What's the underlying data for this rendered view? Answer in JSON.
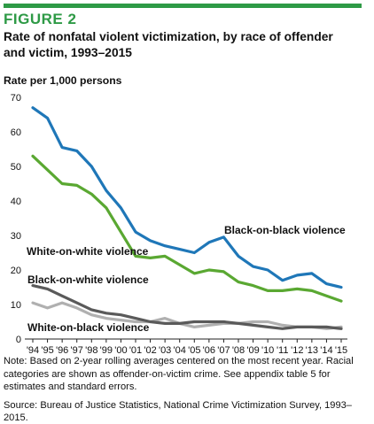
{
  "figure_label": "FIGURE 2",
  "title": "Rate of nonfatal violent victimization, by race of offender and victim, 1993–2015",
  "colors": {
    "accent": "#2e9a46",
    "blue": "#1f77b8",
    "green": "#5aa832",
    "dark_gray": "#5a5a5a",
    "light_gray": "#b0b0b0"
  },
  "note": "Note: Based on 2-year rolling averages centered on the most recent year. Racial categories are shown as offender-on-victim crime. See appendix table 5 for estimates and standard errors.",
  "source": "Source: Bureau of Justice Statistics, National Crime Victimization Survey, 1993–2015.",
  "chart_data": {
    "type": "line",
    "title": "Rate of nonfatal violent victimization, by race of offender and victim, 1993–2015",
    "ylabel": "Rate per 1,000 persons",
    "xlabel": "",
    "ylim": [
      0,
      70
    ],
    "yticks": [
      0,
      10,
      20,
      30,
      40,
      50,
      60,
      70
    ],
    "grid": false,
    "legend": "inline labels",
    "x": [
      "'94",
      "'95",
      "'96",
      "'97",
      "'98",
      "'99",
      "'00",
      "'01",
      "'02",
      "'03",
      "'04",
      "'05",
      "'06",
      "'07",
      "'08",
      "'09",
      "'10",
      "'11",
      "'12",
      "'13",
      "'14",
      "'15"
    ],
    "series": [
      {
        "name": "Black-on-black violence",
        "color": "#1f77b8",
        "values": [
          67,
          64,
          55.5,
          54.5,
          50,
          43,
          38,
          31,
          28.5,
          27,
          26,
          25,
          28,
          29.5,
          24,
          21,
          20,
          17,
          18.5,
          19,
          16,
          15
        ]
      },
      {
        "name": "White-on-white violence",
        "color": "#5aa832",
        "values": [
          53,
          49,
          45,
          44.5,
          42,
          38,
          31,
          24,
          23.5,
          24,
          21.5,
          19,
          20,
          19.5,
          16.5,
          15.5,
          14,
          14,
          14.5,
          14,
          12.5,
          11
        ]
      },
      {
        "name": "Black-on-white violence",
        "color": "#5a5a5a",
        "values": [
          15.5,
          14.5,
          12.5,
          10.5,
          8.5,
          7.5,
          7,
          6,
          5,
          4.5,
          4.5,
          5,
          5,
          5,
          4.5,
          4,
          3.5,
          3,
          3.5,
          3.5,
          3.5,
          3
        ]
      },
      {
        "name": "White-on-black violence",
        "color": "#b0b0b0",
        "values": [
          10.5,
          9,
          10.5,
          9,
          7,
          6,
          5.5,
          5,
          5,
          6,
          4.5,
          3.5,
          4,
          4.5,
          4.5,
          5,
          5,
          4,
          3.5,
          3.5,
          3,
          3.5
        ]
      }
    ]
  }
}
